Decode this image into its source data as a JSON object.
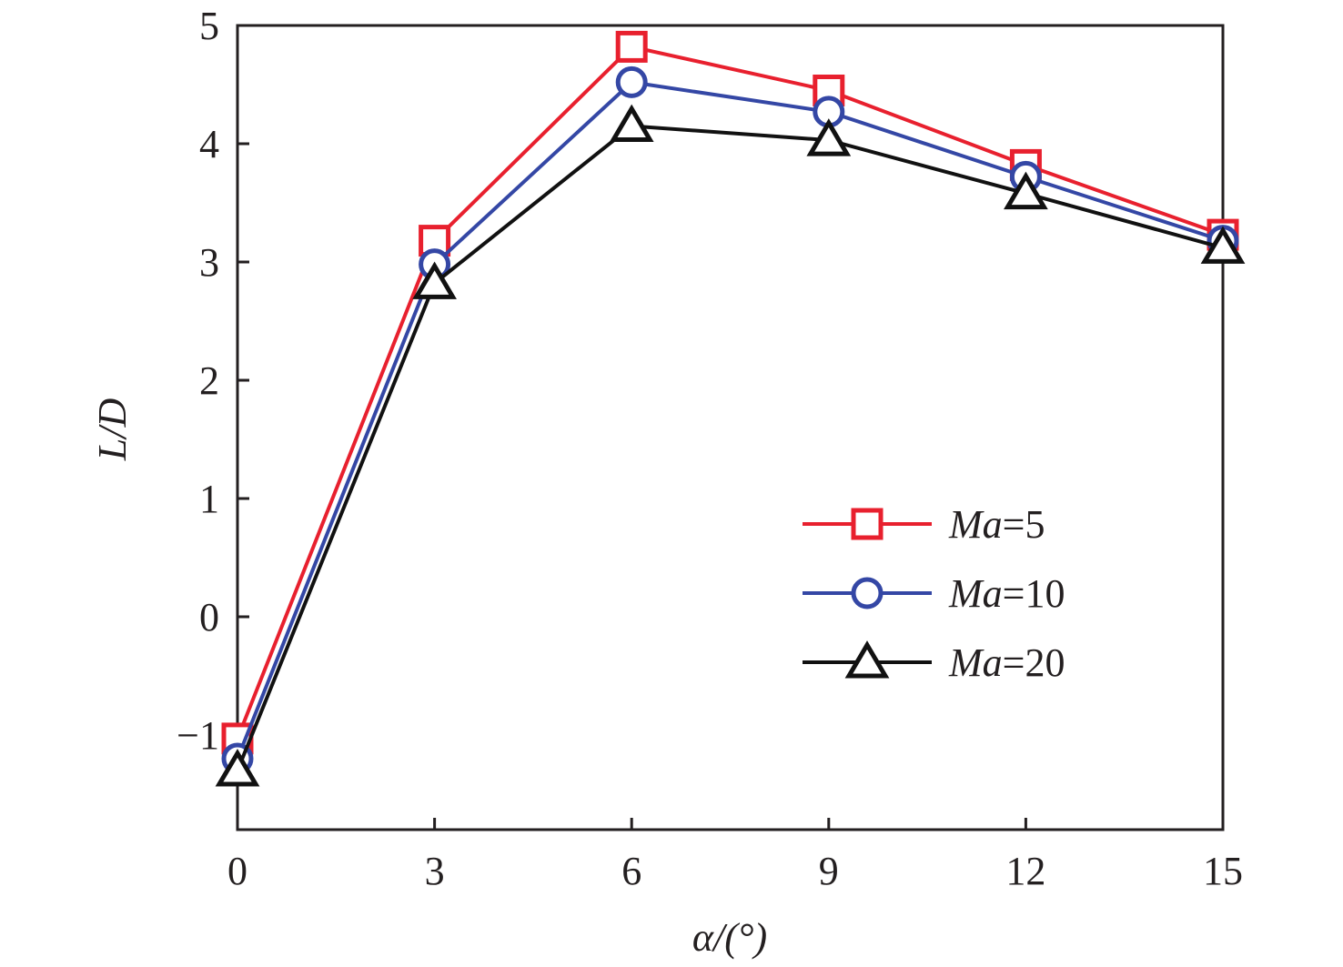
{
  "chart_data": {
    "type": "line",
    "title": "",
    "xlabel": "α/(°)",
    "ylabel": "L/D",
    "xlim": [
      0,
      15
    ],
    "ylim": [
      -1.8,
      5
    ],
    "x": [
      0,
      3,
      6,
      9,
      12,
      15
    ],
    "xticks": [
      0,
      3,
      6,
      9,
      12,
      15
    ],
    "xtick_labels": [
      "0",
      "3",
      "6",
      "9",
      "12",
      "15"
    ],
    "yticks": [
      -1,
      0,
      1,
      2,
      3,
      4,
      5
    ],
    "ytick_labels": [
      "−1",
      "0",
      "1",
      "2",
      "3",
      "4",
      "5"
    ],
    "grid": false,
    "legend_position": "center-right",
    "series": [
      {
        "name": "Ma=5",
        "name_italic": "Ma",
        "name_rest": "=5",
        "color": "#e8202e",
        "marker": "square",
        "values": [
          -1.03,
          3.18,
          4.82,
          4.45,
          3.82,
          3.23
        ]
      },
      {
        "name": "Ma=10",
        "name_italic": "Ma",
        "name_rest": "=10",
        "color": "#3447a5",
        "marker": "circle",
        "values": [
          -1.2,
          2.98,
          4.52,
          4.27,
          3.72,
          3.18
        ]
      },
      {
        "name": "Ma=20",
        "name_italic": "Ma",
        "name_rest": "=20",
        "color": "#111111",
        "marker": "triangle",
        "values": [
          -1.3,
          2.82,
          4.15,
          4.03,
          3.58,
          3.12
        ]
      }
    ]
  }
}
